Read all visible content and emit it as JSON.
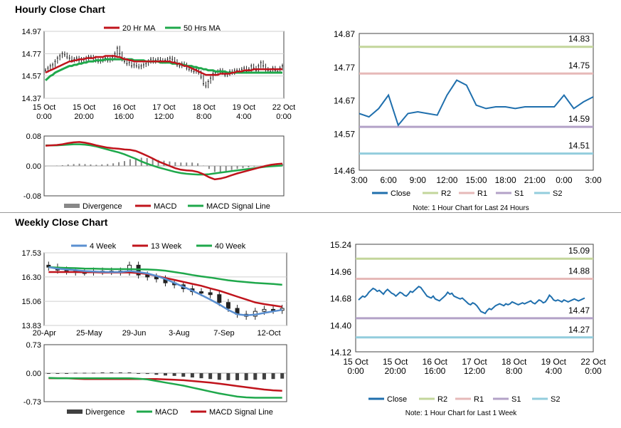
{
  "sections": {
    "hourly_title": "Hourly Close Chart",
    "weekly_title": "Weekly Close Chart"
  },
  "chart_data": [
    {
      "id": "hourly_price",
      "type": "candlestick",
      "title": "",
      "legend": [
        {
          "name": "20 Hr MA",
          "color": "#c0141c"
        },
        {
          "name": "50 Hrs MA",
          "color": "#1fa84b"
        }
      ],
      "legend_position": "top",
      "ylim": [
        14.37,
        14.97
      ],
      "yticks": [
        "14.97",
        "14.77",
        "14.57",
        "14.37"
      ],
      "ytick_values": [
        14.97,
        14.77,
        14.57,
        14.37
      ],
      "xticks": [
        {
          "x": 0,
          "line1": "15 Oct",
          "line2": "0:00"
        },
        {
          "x": 20,
          "line1": "15 Oct",
          "line2": "20:00"
        },
        {
          "x": 40,
          "line1": "16 Oct",
          "line2": "16:00"
        },
        {
          "x": 60,
          "line1": "17 Oct",
          "line2": "12:00"
        },
        {
          "x": 80,
          "line1": "18 Oct",
          "line2": "8:00"
        },
        {
          "x": 100,
          "line1": "19 Oct",
          "line2": "4:00"
        },
        {
          "x": 120,
          "line1": "22 Oct",
          "line2": "0:00"
        }
      ],
      "xlim": [
        0,
        120
      ],
      "close": [
        14.62,
        14.64,
        14.66,
        14.67,
        14.7,
        14.73,
        14.75,
        14.77,
        14.76,
        14.74,
        14.73,
        14.71,
        14.72,
        14.73,
        14.71,
        14.72,
        14.72,
        14.73,
        14.74,
        14.74,
        14.73,
        14.71,
        14.7,
        14.71,
        14.72,
        14.73,
        14.71,
        14.72,
        14.74,
        14.77,
        14.82,
        14.77,
        14.72,
        14.7,
        14.68,
        14.69,
        14.66,
        14.67,
        14.66,
        14.65,
        14.66,
        14.67,
        14.68,
        14.7,
        14.72,
        14.7,
        14.71,
        14.72,
        14.71,
        14.7,
        14.71,
        14.72,
        14.73,
        14.72,
        14.7,
        14.67,
        14.66,
        14.68,
        14.67,
        14.64,
        14.63,
        14.62,
        14.61,
        14.63,
        14.6,
        14.56,
        14.5,
        14.48,
        14.52,
        14.55,
        14.59,
        14.6,
        14.61,
        14.62,
        14.6,
        14.58,
        14.59,
        14.61,
        14.6,
        14.62,
        14.62,
        14.61,
        14.63,
        14.64,
        14.61,
        14.63,
        14.66,
        14.64,
        14.62,
        14.66,
        14.69,
        14.66,
        14.63,
        14.62,
        14.61,
        14.64,
        14.62,
        14.61,
        14.64,
        14.66
      ],
      "ma20": [
        14.6,
        14.61,
        14.62,
        14.63,
        14.64,
        14.65,
        14.66,
        14.67,
        14.68,
        14.69,
        14.7,
        14.7,
        14.71,
        14.71,
        14.72,
        14.72,
        14.72,
        14.73,
        14.73,
        14.73,
        14.73,
        14.74,
        14.74,
        14.74,
        14.74,
        14.75,
        14.75,
        14.75,
        14.75,
        14.75,
        14.74,
        14.74,
        14.73,
        14.72,
        14.72,
        14.71,
        14.71,
        14.7,
        14.7,
        14.7,
        14.7,
        14.7,
        14.7,
        14.7,
        14.7,
        14.7,
        14.7,
        14.7,
        14.7,
        14.7,
        14.7,
        14.7,
        14.7,
        14.69,
        14.69,
        14.68,
        14.68,
        14.67,
        14.66,
        14.66,
        14.65,
        14.64,
        14.63,
        14.62,
        14.61,
        14.6,
        14.59,
        14.58,
        14.58,
        14.58,
        14.58,
        14.58,
        14.58,
        14.59,
        14.59,
        14.59,
        14.59,
        14.59,
        14.6,
        14.6,
        14.61,
        14.61,
        14.61,
        14.62,
        14.62,
        14.62,
        14.62,
        14.63,
        14.63,
        14.63,
        14.63,
        14.63,
        14.63,
        14.63,
        14.63,
        14.63,
        14.63,
        14.63,
        14.63,
        14.63
      ],
      "ma50": [
        14.53,
        14.55,
        14.57,
        14.58,
        14.6,
        14.61,
        14.62,
        14.63,
        14.64,
        14.65,
        14.66,
        14.66,
        14.67,
        14.67,
        14.68,
        14.68,
        14.69,
        14.69,
        14.7,
        14.7,
        14.7,
        14.71,
        14.71,
        14.71,
        14.71,
        14.72,
        14.72,
        14.72,
        14.72,
        14.72,
        14.72,
        14.72,
        14.72,
        14.72,
        14.72,
        14.72,
        14.72,
        14.71,
        14.71,
        14.71,
        14.71,
        14.71,
        14.7,
        14.7,
        14.7,
        14.7,
        14.7,
        14.7,
        14.69,
        14.69,
        14.69,
        14.69,
        14.69,
        14.68,
        14.68,
        14.68,
        14.68,
        14.67,
        14.67,
        14.66,
        14.66,
        14.66,
        14.65,
        14.65,
        14.64,
        14.64,
        14.63,
        14.63,
        14.62,
        14.62,
        14.62,
        14.61,
        14.61,
        14.61,
        14.61,
        14.61,
        14.6,
        14.6,
        14.6,
        14.6,
        14.6,
        14.6,
        14.6,
        14.6,
        14.6,
        14.6,
        14.6,
        14.6,
        14.6,
        14.6,
        14.6,
        14.6,
        14.6,
        14.6,
        14.6,
        14.6,
        14.6,
        14.6,
        14.6,
        14.6
      ]
    },
    {
      "id": "hourly_macd",
      "type": "line",
      "legend": [
        {
          "name": "Divergence",
          "color": "#888888"
        },
        {
          "name": "MACD",
          "color": "#c0141c"
        },
        {
          "name": "MACD Signal Line",
          "color": "#1fa84b"
        }
      ],
      "legend_position": "bottom",
      "ylim": [
        -0.08,
        0.08
      ],
      "yticks": [
        "0.08",
        "0.00",
        "-0.08"
      ],
      "ytick_values": [
        0.08,
        0.0,
        -0.08
      ],
      "macd": [
        0.054,
        0.055,
        0.056,
        0.058,
        0.061,
        0.063,
        0.064,
        0.062,
        0.059,
        0.055,
        0.052,
        0.049,
        0.047,
        0.046,
        0.044,
        0.043,
        0.04,
        0.034,
        0.027,
        0.02,
        0.012,
        0.006,
        0.0,
        -0.006,
        -0.01,
        -0.012,
        -0.013,
        -0.016,
        -0.022,
        -0.03,
        -0.036,
        -0.034,
        -0.03,
        -0.025,
        -0.02,
        -0.016,
        -0.012,
        -0.008,
        -0.004,
        0.0,
        0.003,
        0.005,
        0.006
      ],
      "signal": [
        0.055,
        0.055,
        0.055,
        0.056,
        0.057,
        0.058,
        0.058,
        0.057,
        0.055,
        0.052,
        0.048,
        0.044,
        0.04,
        0.036,
        0.031,
        0.025,
        0.019,
        0.012,
        0.006,
        0.001,
        -0.004,
        -0.008,
        -0.012,
        -0.016,
        -0.019,
        -0.021,
        -0.022,
        -0.023,
        -0.023,
        -0.022,
        -0.02,
        -0.018,
        -0.016,
        -0.014,
        -0.012,
        -0.01,
        -0.008,
        -0.006,
        -0.004,
        -0.002,
        -0.001,
        0.0,
        0.001
      ],
      "divergence": [
        -0.001,
        0.0,
        0.001,
        0.002,
        0.004,
        0.005,
        0.006,
        0.005,
        0.004,
        0.003,
        0.004,
        0.005,
        0.007,
        0.01,
        0.013,
        0.018,
        0.021,
        0.022,
        0.021,
        0.019,
        0.016,
        0.014,
        0.012,
        0.01,
        0.009,
        0.009,
        0.009,
        0.007,
        0.001,
        -0.008,
        -0.016,
        -0.016,
        -0.014,
        -0.011,
        -0.008,
        -0.006,
        -0.004,
        -0.002,
        0.0,
        0.002,
        0.004,
        0.005,
        0.005
      ]
    },
    {
      "id": "hourly_levels",
      "type": "line",
      "legend": [
        {
          "name": "Close",
          "color": "#1f6fad"
        },
        {
          "name": "R2",
          "color": "#c3d69b"
        },
        {
          "name": "R1",
          "color": "#e6b9b8"
        },
        {
          "name": "S1",
          "color": "#b3a2c7"
        },
        {
          "name": "S2",
          "color": "#93cddd"
        }
      ],
      "legend_position": "bottom",
      "note": "Note: 1 Hour Chart for Last 24 Hours",
      "ylim": [
        14.46,
        14.87
      ],
      "yticks": [
        "14.87",
        "14.77",
        "14.67",
        "14.57",
        "14.46"
      ],
      "ytick_values": [
        14.87,
        14.77,
        14.67,
        14.57,
        14.46
      ],
      "xticks": [
        "3:00",
        "6:00",
        "9:00",
        "12:00",
        "15:00",
        "18:00",
        "21:00",
        "0:00",
        "3:00"
      ],
      "xlim": [
        0,
        24
      ],
      "levels": [
        {
          "name": "R2",
          "value": 14.83,
          "label": "14.83",
          "color": "#c3d69b"
        },
        {
          "name": "R1",
          "value": 14.75,
          "label": "14.75",
          "color": "#e6b9b8"
        },
        {
          "name": "S1",
          "value": 14.59,
          "label": "14.59",
          "color": "#b3a2c7"
        },
        {
          "name": "S2",
          "value": 14.51,
          "label": "14.51",
          "color": "#93cddd"
        }
      ],
      "close_x": [
        0,
        1,
        2,
        3,
        4,
        5,
        6,
        7,
        8,
        9,
        10,
        11,
        12,
        13,
        14,
        15,
        16,
        17,
        18,
        19,
        20,
        21,
        22,
        23,
        24
      ],
      "close": [
        14.63,
        14.62,
        14.645,
        14.685,
        14.595,
        14.63,
        14.635,
        14.63,
        14.625,
        14.685,
        14.73,
        14.715,
        14.655,
        14.645,
        14.65,
        14.65,
        14.645,
        14.65,
        14.65,
        14.65,
        14.65,
        14.685,
        14.645,
        14.665,
        14.68
      ]
    },
    {
      "id": "weekly_price",
      "type": "candlestick",
      "legend": [
        {
          "name": "4 Week",
          "color": "#5a8fd0"
        },
        {
          "name": "13 Week",
          "color": "#c0141c"
        },
        {
          "name": "40 Week",
          "color": "#1fa84b"
        }
      ],
      "legend_position": "top",
      "ylim": [
        13.83,
        17.53
      ],
      "yticks": [
        "17.53",
        "16.30",
        "15.06",
        "13.83"
      ],
      "ytick_values": [
        17.53,
        16.3,
        15.06,
        13.83
      ],
      "xticks": [
        "20-Apr",
        "25-May",
        "29-Jun",
        "3-Aug",
        "7-Sep",
        "12-Oct"
      ],
      "xtick_index": [
        0,
        5,
        10,
        15,
        20,
        25
      ],
      "close": [
        16.8,
        16.65,
        16.6,
        16.55,
        16.55,
        16.6,
        16.58,
        16.6,
        16.55,
        16.9,
        16.4,
        16.3,
        16.2,
        16.0,
        15.9,
        15.7,
        15.55,
        15.5,
        15.4,
        15.0,
        14.7,
        14.4,
        14.3,
        14.55,
        14.65,
        14.6,
        14.7
      ],
      "ma4": [
        16.8,
        16.72,
        16.68,
        16.65,
        16.6,
        16.58,
        16.56,
        16.55,
        16.55,
        16.6,
        16.55,
        16.48,
        16.35,
        16.2,
        16.0,
        15.8,
        15.6,
        15.38,
        15.15,
        14.9,
        14.62,
        14.4,
        14.35,
        14.38,
        14.47,
        14.55,
        14.62
      ],
      "ma13": [
        16.55,
        16.55,
        16.55,
        16.55,
        16.54,
        16.54,
        16.53,
        16.53,
        16.53,
        16.53,
        16.5,
        16.45,
        16.35,
        16.25,
        16.15,
        16.05,
        15.95,
        15.85,
        15.72,
        15.6,
        15.45,
        15.3,
        15.15,
        15.0,
        14.92,
        14.85,
        14.78
      ],
      "ma40": [
        16.8,
        16.78,
        16.76,
        16.75,
        16.73,
        16.72,
        16.71,
        16.7,
        16.7,
        16.7,
        16.69,
        16.68,
        16.66,
        16.62,
        16.55,
        16.48,
        16.4,
        16.33,
        16.27,
        16.2,
        16.13,
        16.08,
        16.04,
        16.0,
        15.97,
        15.94,
        15.9
      ]
    },
    {
      "id": "weekly_macd",
      "type": "line",
      "legend": [
        {
          "name": "Divergence",
          "color": "#404040"
        },
        {
          "name": "MACD",
          "color": "#1fa84b"
        },
        {
          "name": "MACD Signal Line",
          "color": "#c0141c"
        }
      ],
      "legend_position": "bottom",
      "ylim": [
        -0.73,
        0.73
      ],
      "yticks": [
        "0.73",
        "0.00",
        "-0.73"
      ],
      "ytick_values": [
        0.73,
        0.0,
        -0.73
      ],
      "macd": [
        -0.12,
        -0.13,
        -0.13,
        -0.13,
        -0.13,
        -0.13,
        -0.13,
        -0.13,
        -0.13,
        -0.13,
        -0.14,
        -0.16,
        -0.2,
        -0.24,
        -0.28,
        -0.32,
        -0.37,
        -0.42,
        -0.47,
        -0.52,
        -0.56,
        -0.6,
        -0.62,
        -0.63,
        -0.63,
        -0.63,
        -0.63
      ],
      "signal": [
        -0.13,
        -0.13,
        -0.13,
        -0.14,
        -0.15,
        -0.15,
        -0.15,
        -0.15,
        -0.15,
        -0.15,
        -0.15,
        -0.15,
        -0.15,
        -0.16,
        -0.17,
        -0.18,
        -0.2,
        -0.22,
        -0.24,
        -0.27,
        -0.3,
        -0.33,
        -0.36,
        -0.39,
        -0.42,
        -0.44,
        -0.45
      ],
      "divergence": [
        0.0,
        0.0,
        0.0,
        0.01,
        0.01,
        0.01,
        0.02,
        0.02,
        0.02,
        0.02,
        -0.01,
        -0.02,
        -0.04,
        -0.06,
        -0.07,
        -0.09,
        -0.11,
        -0.13,
        -0.15,
        -0.17,
        -0.18,
        -0.18,
        -0.18,
        -0.17,
        -0.16,
        -0.15,
        -0.14
      ]
    },
    {
      "id": "weekly_levels",
      "type": "line",
      "legend": [
        {
          "name": "Close",
          "color": "#1f6fad"
        },
        {
          "name": "R2",
          "color": "#c3d69b"
        },
        {
          "name": "R1",
          "color": "#e6b9b8"
        },
        {
          "name": "S1",
          "color": "#b3a2c7"
        },
        {
          "name": "S2",
          "color": "#93cddd"
        }
      ],
      "legend_position": "bottom",
      "note": "Note: 1 Hour Chart for Last 1 Week",
      "ylim": [
        14.12,
        15.24
      ],
      "yticks": [
        "15.24",
        "14.96",
        "14.68",
        "14.40",
        "14.12"
      ],
      "ytick_values": [
        15.24,
        14.96,
        14.68,
        14.4,
        14.12
      ],
      "xticks": [
        {
          "x": 0,
          "line1": "15 Oct",
          "line2": "0:00"
        },
        {
          "x": 20,
          "line1": "15 Oct",
          "line2": "20:00"
        },
        {
          "x": 40,
          "line1": "16 Oct",
          "line2": "16:00"
        },
        {
          "x": 60,
          "line1": "17 Oct",
          "line2": "12:00"
        },
        {
          "x": 80,
          "line1": "18 Oct",
          "line2": "8:00"
        },
        {
          "x": 100,
          "line1": "19 Oct",
          "line2": "4:00"
        },
        {
          "x": 120,
          "line1": "22 Oct",
          "line2": "0:00"
        }
      ],
      "xlim": [
        0,
        120
      ],
      "levels": [
        {
          "name": "R2",
          "value": 15.09,
          "label": "15.09",
          "color": "#c3d69b"
        },
        {
          "name": "R1",
          "value": 14.88,
          "label": "14.88",
          "color": "#e6b9b8"
        },
        {
          "name": "S1",
          "value": 14.47,
          "label": "14.47",
          "color": "#b3a2c7"
        },
        {
          "name": "S2",
          "value": 14.27,
          "label": "14.27",
          "color": "#93cddd"
        }
      ],
      "close": [
        14.66,
        14.68,
        14.7,
        14.69,
        14.71,
        14.74,
        14.76,
        14.78,
        14.77,
        14.75,
        14.76,
        14.74,
        14.72,
        14.75,
        14.77,
        14.75,
        14.73,
        14.72,
        14.7,
        14.72,
        14.74,
        14.73,
        14.71,
        14.7,
        14.72,
        14.75,
        14.74,
        14.76,
        14.78,
        14.8,
        14.79,
        14.76,
        14.73,
        14.7,
        14.69,
        14.68,
        14.7,
        14.67,
        14.66,
        14.65,
        14.67,
        14.69,
        14.71,
        14.74,
        14.72,
        14.73,
        14.7,
        14.69,
        14.68,
        14.67,
        14.68,
        14.66,
        14.64,
        14.62,
        14.61,
        14.63,
        14.62,
        14.6,
        14.57,
        14.54,
        14.53,
        14.52,
        14.55,
        14.57,
        14.56,
        14.58,
        14.6,
        14.61,
        14.62,
        14.61,
        14.6,
        14.62,
        14.61,
        14.62,
        14.64,
        14.63,
        14.62,
        14.61,
        14.62,
        14.63,
        14.62,
        14.63,
        14.64,
        14.65,
        14.63,
        14.62,
        14.64,
        14.66,
        14.65,
        14.63,
        14.64,
        14.67,
        14.71,
        14.69,
        14.66,
        14.65,
        14.66,
        14.65,
        14.64,
        14.66,
        14.65,
        14.64,
        14.65,
        14.66,
        14.67,
        14.66,
        14.65,
        14.66,
        14.67,
        14.68
      ]
    }
  ]
}
